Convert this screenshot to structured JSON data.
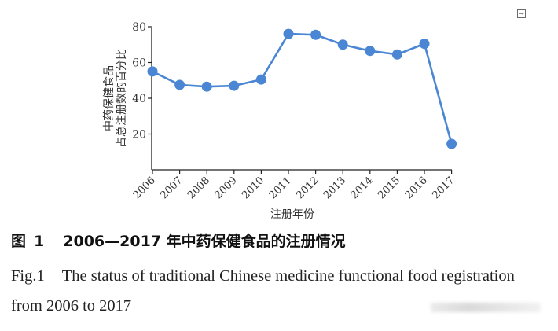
{
  "chart_data": {
    "type": "line",
    "x": [
      "2006",
      "2007",
      "2008",
      "2009",
      "2010",
      "2011",
      "2012",
      "2013",
      "2014",
      "2015",
      "2016",
      "2017"
    ],
    "values": [
      55,
      47.5,
      46.5,
      47,
      50.5,
      76,
      75.5,
      70,
      66.5,
      64.5,
      70.5,
      14.5
    ],
    "ylim": [
      0,
      80
    ],
    "yticks": [
      20,
      40,
      60,
      80
    ],
    "xlabel": "注册年份",
    "ylabel_lines": [
      "中药保健食品",
      "占总注册数的百分比"
    ],
    "grid": false,
    "line_color": "#4a86d3",
    "marker_color": "#4a86d3"
  },
  "caption": {
    "cn_prefix": "图",
    "cn_number": "1",
    "cn_title": "2006—2017 年中药保健食品的注册情况",
    "en_prefix": "Fig.1",
    "en_title": "The status of traditional Chinese medicine functional food registration from 2006 to 2017"
  },
  "ui": {
    "corner_icon": "export-icon",
    "corner_glyph": "→"
  }
}
